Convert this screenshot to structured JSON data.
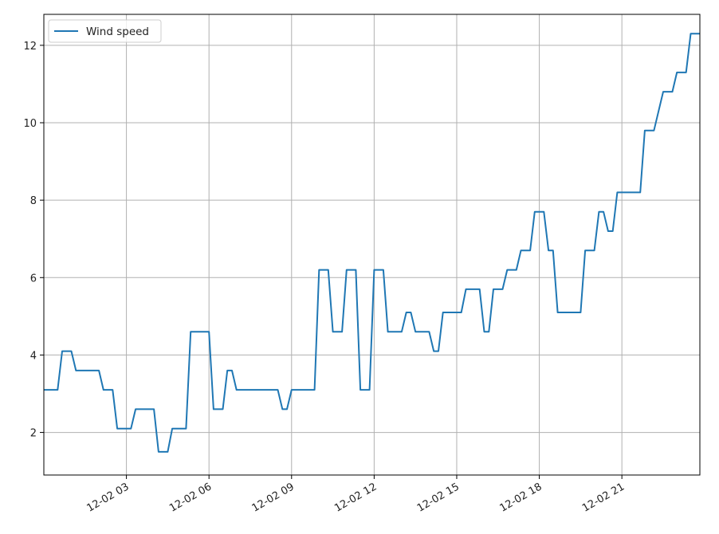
{
  "chart_data": {
    "type": "line",
    "x_type": "datetime",
    "grid": true,
    "legend_placement": "top-left",
    "xlim": [
      "12-02 00:00",
      "12-02 23:50"
    ],
    "ylim": [
      0.9,
      12.8
    ],
    "xticks": [
      {
        "x": "12-02 03:00",
        "label": "12-02 03"
      },
      {
        "x": "12-02 06:00",
        "label": "12-02 06"
      },
      {
        "x": "12-02 09:00",
        "label": "12-02 09"
      },
      {
        "x": "12-02 12:00",
        "label": "12-02 12"
      },
      {
        "x": "12-02 15:00",
        "label": "12-02 15"
      },
      {
        "x": "12-02 18:00",
        "label": "12-02 18"
      },
      {
        "x": "12-02 21:00",
        "label": "12-02 21"
      }
    ],
    "yticks": [
      {
        "y": 2,
        "label": "2"
      },
      {
        "y": 4,
        "label": "4"
      },
      {
        "y": 6,
        "label": "6"
      },
      {
        "y": 8,
        "label": "8"
      },
      {
        "y": 10,
        "label": "10"
      },
      {
        "y": 12,
        "label": "12"
      }
    ],
    "series": [
      {
        "name": "Wind speed",
        "color": "#1f77b4",
        "points": [
          [
            "12-02 00:00",
            3.1
          ],
          [
            "12-02 00:30",
            3.1
          ],
          [
            "12-02 00:40",
            4.1
          ],
          [
            "12-02 01:00",
            4.1
          ],
          [
            "12-02 01:10",
            3.6
          ],
          [
            "12-02 02:00",
            3.6
          ],
          [
            "12-02 02:10",
            3.1
          ],
          [
            "12-02 02:30",
            3.1
          ],
          [
            "12-02 02:40",
            2.1
          ],
          [
            "12-02 03:10",
            2.1
          ],
          [
            "12-02 03:20",
            2.6
          ],
          [
            "12-02 04:00",
            2.6
          ],
          [
            "12-02 04:10",
            1.5
          ],
          [
            "12-02 04:30",
            1.5
          ],
          [
            "12-02 04:40",
            2.1
          ],
          [
            "12-02 05:10",
            2.1
          ],
          [
            "12-02 05:20",
            4.6
          ],
          [
            "12-02 06:00",
            4.6
          ],
          [
            "12-02 06:10",
            2.6
          ],
          [
            "12-02 06:30",
            2.6
          ],
          [
            "12-02 06:40",
            3.6
          ],
          [
            "12-02 06:50",
            3.6
          ],
          [
            "12-02 07:00",
            3.1
          ],
          [
            "12-02 08:30",
            3.1
          ],
          [
            "12-02 08:40",
            2.6
          ],
          [
            "12-02 08:50",
            2.6
          ],
          [
            "12-02 09:00",
            3.1
          ],
          [
            "12-02 09:50",
            3.1
          ],
          [
            "12-02 10:00",
            6.2
          ],
          [
            "12-02 10:20",
            6.2
          ],
          [
            "12-02 10:30",
            4.6
          ],
          [
            "12-02 10:50",
            4.6
          ],
          [
            "12-02 11:00",
            6.2
          ],
          [
            "12-02 11:20",
            6.2
          ],
          [
            "12-02 11:30",
            3.1
          ],
          [
            "12-02 11:50",
            3.1
          ],
          [
            "12-02 12:00",
            6.2
          ],
          [
            "12-02 12:20",
            6.2
          ],
          [
            "12-02 12:30",
            4.6
          ],
          [
            "12-02 13:00",
            4.6
          ],
          [
            "12-02 13:10",
            5.1
          ],
          [
            "12-02 13:20",
            5.1
          ],
          [
            "12-02 13:30",
            4.6
          ],
          [
            "12-02 14:00",
            4.6
          ],
          [
            "12-02 14:10",
            4.1
          ],
          [
            "12-02 14:20",
            4.1
          ],
          [
            "12-02 14:30",
            5.1
          ],
          [
            "12-02 15:10",
            5.1
          ],
          [
            "12-02 15:20",
            5.7
          ],
          [
            "12-02 15:50",
            5.7
          ],
          [
            "12-02 16:00",
            4.6
          ],
          [
            "12-02 16:10",
            4.6
          ],
          [
            "12-02 16:20",
            5.7
          ],
          [
            "12-02 16:40",
            5.7
          ],
          [
            "12-02 16:50",
            6.2
          ],
          [
            "12-02 17:10",
            6.2
          ],
          [
            "12-02 17:20",
            6.7
          ],
          [
            "12-02 17:40",
            6.7
          ],
          [
            "12-02 17:50",
            7.7
          ],
          [
            "12-02 18:10",
            7.7
          ],
          [
            "12-02 18:20",
            6.7
          ],
          [
            "12-02 18:30",
            6.7
          ],
          [
            "12-02 18:40",
            5.1
          ],
          [
            "12-02 19:30",
            5.1
          ],
          [
            "12-02 19:40",
            6.7
          ],
          [
            "12-02 20:00",
            6.7
          ],
          [
            "12-02 20:10",
            7.7
          ],
          [
            "12-02 20:20",
            7.7
          ],
          [
            "12-02 20:30",
            7.2
          ],
          [
            "12-02 20:40",
            7.2
          ],
          [
            "12-02 20:50",
            8.2
          ],
          [
            "12-02 21:40",
            8.2
          ],
          [
            "12-02 21:50",
            9.8
          ],
          [
            "12-02 22:10",
            9.8
          ],
          [
            "12-02 22:30",
            10.8
          ],
          [
            "12-02 22:50",
            10.8
          ],
          [
            "12-02 23:00",
            11.3
          ],
          [
            "12-02 23:20",
            11.3
          ],
          [
            "12-02 23:30",
            12.3
          ],
          [
            "12-02 23:50",
            12.3
          ]
        ]
      }
    ]
  }
}
